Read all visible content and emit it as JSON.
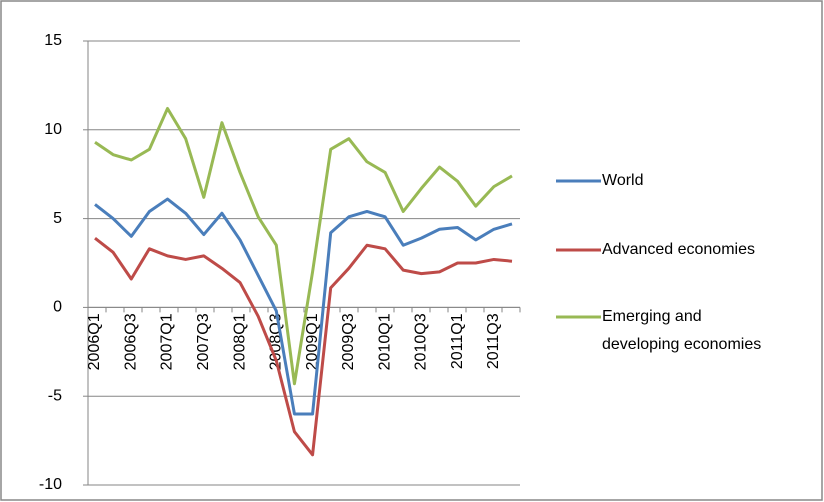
{
  "chart_data": {
    "type": "line",
    "categories": [
      "2006Q1",
      null,
      "2006Q3",
      null,
      "2007Q1",
      null,
      "2007Q3",
      null,
      "2008Q1",
      null,
      "2008Q3",
      null,
      "2009Q1",
      null,
      "2009Q3",
      null,
      "2010Q1",
      null,
      "2010Q3",
      null,
      "2011Q1",
      null,
      "2011Q3",
      null
    ],
    "series": [
      {
        "name": "World",
        "color": "#4a7ebb",
        "values": [
          5.8,
          5.0,
          4.0,
          5.4,
          6.1,
          5.3,
          4.1,
          5.3,
          3.8,
          1.8,
          -0.2,
          -6.0,
          -6.0,
          4.2,
          5.1,
          5.4,
          5.1,
          3.5,
          3.9,
          4.4,
          4.5,
          3.8,
          4.4,
          4.7
        ]
      },
      {
        "name": "Advanced economies",
        "color": "#be4b48",
        "values": [
          3.9,
          3.1,
          1.6,
          3.3,
          2.9,
          2.7,
          2.9,
          2.2,
          1.4,
          -0.5,
          -3.0,
          -7.0,
          -8.3,
          1.1,
          2.2,
          3.5,
          3.3,
          2.1,
          1.9,
          2.0,
          2.5,
          2.5,
          2.7,
          2.6
        ]
      },
      {
        "name": "Emerging and developing economies",
        "color": "#98b954",
        "values": [
          9.3,
          8.6,
          8.3,
          8.9,
          11.2,
          9.5,
          6.2,
          10.4,
          7.6,
          5.1,
          3.5,
          -4.3,
          2.0,
          8.9,
          9.5,
          8.2,
          7.6,
          5.4,
          6.7,
          7.9,
          7.1,
          5.7,
          6.8,
          7.4
        ]
      }
    ],
    "ylim": [
      -10,
      15
    ],
    "yticks": [
      -10,
      -5,
      0,
      5,
      10,
      15
    ],
    "grid": true,
    "legend": "right"
  }
}
